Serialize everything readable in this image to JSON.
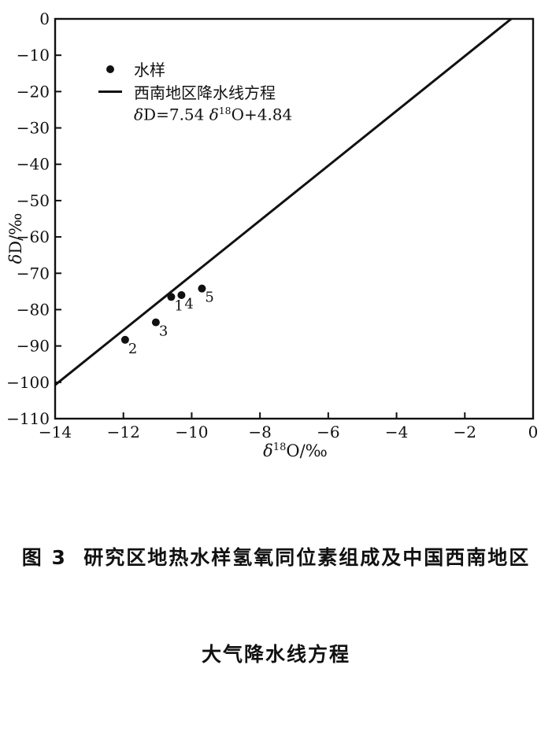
{
  "figure": {
    "caption_line1": "图 3  研究区地热水样氢氧同位素组成及中国西南地区",
    "caption_line2": "大气降水线方程"
  },
  "legend": {
    "sample_label": "水样",
    "line_label": "西南地区降水线方程",
    "equation": {
      "delta1": "δ",
      "part1": "D=7.54 ",
      "delta2": "δ",
      "sup": "18",
      "part2": "O+4.84"
    }
  },
  "axes": {
    "y_label": {
      "delta": "δ",
      "rest": "D/‰"
    },
    "x_label": {
      "delta": "δ",
      "sup": "18",
      "rest": "O/‰"
    }
  },
  "chart_data": {
    "type": "scatter",
    "title": "",
    "xlabel": "δ18O/‰",
    "ylabel": "δD/‰",
    "xlim": [
      -14,
      0
    ],
    "ylim": [
      -110,
      0
    ],
    "x_ticks": [
      -14,
      -12,
      -10,
      -8,
      -6,
      -4,
      -2,
      0
    ],
    "y_ticks": [
      0,
      -10,
      -20,
      -30,
      -40,
      -50,
      -60,
      -70,
      -80,
      -90,
      -100,
      -110
    ],
    "grid": false,
    "legend_position": "upper-left-inside",
    "points": [
      {
        "label": "1",
        "x": -10.6,
        "y": -76.5
      },
      {
        "label": "2",
        "x": -11.95,
        "y": -88.3
      },
      {
        "label": "3",
        "x": -11.05,
        "y": -83.5
      },
      {
        "label": "4",
        "x": -10.3,
        "y": -76.0
      },
      {
        "label": "5",
        "x": -9.7,
        "y": -74.2
      }
    ],
    "series_name": "水样",
    "line": {
      "name": "西南地区降水线方程",
      "equation_text": "δD=7.54 δ18O+4.84",
      "slope": 7.54,
      "intercept": 4.84,
      "x_start": -14,
      "y_clip_max": 0
    },
    "colors": {
      "ink": "#111111",
      "background": "#ffffff"
    }
  }
}
